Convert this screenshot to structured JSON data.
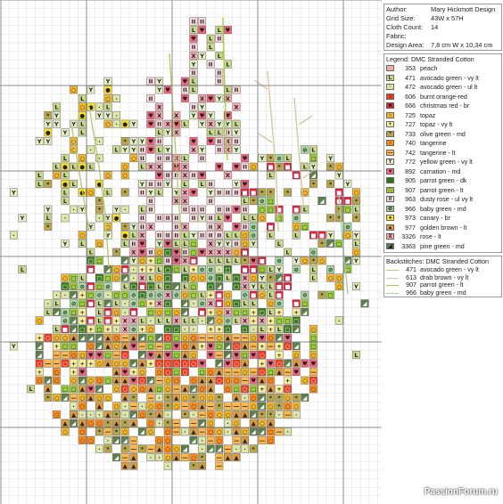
{
  "info": {
    "rows": [
      {
        "label": "Author:",
        "value": "Mary Hickmott Design"
      },
      {
        "label": "Grid Size:",
        "value": "43W x 57H"
      },
      {
        "label": "Cloth Count:",
        "value": "14"
      },
      {
        "label": "Fabric:",
        "value": ""
      },
      {
        "label": "Design Area:",
        "value": "7,8 cm W  x  10,34 cm"
      }
    ]
  },
  "legend": {
    "title": "Legend: DMC Stranded Cotton",
    "items": [
      {
        "number": "353",
        "name": "peach",
        "color": "#f4a9a0",
        "symbol": ""
      },
      {
        "number": "471",
        "name": "avocado green - vy lt",
        "color": "#c9d98a",
        "symbol": "L"
      },
      {
        "number": "472",
        "name": "avocado green - ul lt",
        "color": "#dfe7a8",
        "symbol": "·"
      },
      {
        "number": "606",
        "name": "burnt orange-red",
        "color": "#f23a1c",
        "symbol": "○"
      },
      {
        "number": "666",
        "name": "christmas red - br",
        "color": "#e31d3a",
        "symbol": "■"
      },
      {
        "number": "725",
        "name": "topaz",
        "color": "#f5b828",
        "symbol": "○"
      },
      {
        "number": "727",
        "name": "topaz - vy lt",
        "color": "#fbef9c",
        "symbol": "+"
      },
      {
        "number": "733",
        "name": "olive green - md",
        "color": "#b8a74a",
        "symbol": "*"
      },
      {
        "number": "740",
        "name": "tangerine",
        "color": "#ff8c1a",
        "symbol": "○"
      },
      {
        "number": "742",
        "name": "tangerine - lt",
        "color": "#ffb84a",
        "symbol": "—"
      },
      {
        "number": "772",
        "name": "yellow green - vy lt",
        "color": "#e4f0c2",
        "symbol": "Y"
      },
      {
        "number": "892",
        "name": "carnation - md",
        "color": "#f6637a",
        "symbol": "♥"
      },
      {
        "number": "905",
        "name": "parrot green - dk",
        "color": "#3a7a1a",
        "symbol": "□"
      },
      {
        "number": "907",
        "name": "parrot green - lt",
        "color": "#9fd23a",
        "symbol": "□"
      },
      {
        "number": "963",
        "name": "dusty rose - ul vy lt",
        "color": "#fbd8dc",
        "symbol": "II"
      },
      {
        "number": "966",
        "name": "baby green - md",
        "color": "#a6d8a0",
        "symbol": "⊘"
      },
      {
        "number": "973",
        "name": "canary - br",
        "color": "#ffe21a",
        "symbol": "●"
      },
      {
        "number": "977",
        "name": "golden brown - lt",
        "color": "#dc9a3a",
        "symbol": "▲"
      },
      {
        "number": "3326",
        "name": "rose - lt",
        "color": "#f4a8b4",
        "symbol": "X"
      },
      {
        "number": "3363",
        "name": "pine green - md",
        "color": "#5e7e4a",
        "symbol": "◢"
      }
    ]
  },
  "backstitches": {
    "title": "Backstitches: DMC Stranded Cotton",
    "items": [
      {
        "number": "471",
        "name": "avocado green - vy lt",
        "color": "#b9cc6e"
      },
      {
        "number": "613",
        "name": "drab brown - vy lt",
        "color": "#d8c8a0"
      },
      {
        "number": "907",
        "name": "parrot green - lt",
        "color": "#9fd23a"
      },
      {
        "number": "966",
        "name": "baby green - md",
        "color": "#9ecfa0"
      }
    ]
  },
  "watermark": "PassionForum.ru"
}
